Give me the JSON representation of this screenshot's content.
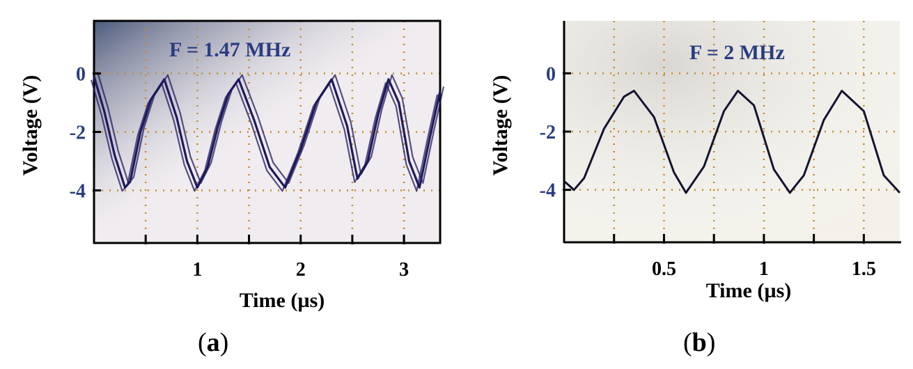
{
  "chart_data": [
    {
      "type": "line",
      "panel": "a",
      "annotation": "F = 1.47 MHz",
      "xlabel": "Time (µs)",
      "ylabel": "Voltage (V)",
      "xlim": [
        0,
        3.35
      ],
      "ylim": [
        -5.8,
        1.8
      ],
      "x_ticks": [
        1,
        2,
        3
      ],
      "x_ticks_unlabeled": [
        0,
        0.5,
        1.5,
        2.5,
        3.0
      ],
      "y_ticks": [
        0,
        -2,
        -4
      ],
      "grid": true,
      "frequency_MHz": 1.47,
      "series": [
        {
          "waveform": "sawtooth-like oscillation, overlaid traces",
          "x": [
            0.0,
            0.1,
            0.2,
            0.3,
            0.35,
            0.45,
            0.55,
            0.68,
            0.8,
            0.9,
            1.0,
            1.1,
            1.2,
            1.3,
            1.4,
            1.55,
            1.7,
            1.85,
            2.0,
            2.15,
            2.3,
            2.45,
            2.55,
            2.65,
            2.75,
            2.85,
            2.95,
            3.05,
            3.15,
            3.25,
            3.35
          ],
          "y": [
            -0.1,
            -1.3,
            -2.8,
            -3.9,
            -3.7,
            -2.0,
            -0.9,
            -0.2,
            -1.5,
            -3.0,
            -3.9,
            -3.2,
            -1.8,
            -0.7,
            -0.2,
            -1.6,
            -3.2,
            -3.9,
            -2.6,
            -1.0,
            -0.2,
            -1.8,
            -3.6,
            -3.0,
            -1.4,
            -0.2,
            -1.0,
            -3.0,
            -3.9,
            -2.2,
            -0.6
          ]
        }
      ]
    },
    {
      "type": "line",
      "panel": "b",
      "annotation": "F = 2 MHz",
      "xlabel": "Time (µs)",
      "ylabel": "Voltage (V)",
      "xlim": [
        0,
        1.68
      ],
      "ylim": [
        -5.8,
        1.8
      ],
      "x_ticks": [
        0.5,
        1,
        1.5
      ],
      "x_ticks_unlabeled": [
        0.25,
        0.75,
        1.25
      ],
      "y_ticks": [
        0,
        -2,
        -4
      ],
      "grid": true,
      "frequency_MHz": 2,
      "series": [
        {
          "waveform": "sinusoidal oscillation",
          "period_us": 0.52,
          "amplitude_V": 1.75,
          "offset_V": -2.35,
          "first_peak_us": 0.35,
          "x": [
            0.0,
            0.05,
            0.1,
            0.2,
            0.3,
            0.35,
            0.45,
            0.55,
            0.61,
            0.7,
            0.8,
            0.87,
            0.95,
            1.05,
            1.13,
            1.2,
            1.3,
            1.39,
            1.5,
            1.6,
            1.68
          ],
          "y": [
            -3.7,
            -4.0,
            -3.6,
            -1.9,
            -0.8,
            -0.6,
            -1.5,
            -3.4,
            -4.1,
            -3.2,
            -1.3,
            -0.6,
            -1.1,
            -3.3,
            -4.1,
            -3.5,
            -1.6,
            -0.6,
            -1.3,
            -3.5,
            -4.1
          ]
        }
      ]
    }
  ],
  "panel_labels": {
    "a": {
      "open": "(",
      "letter": "a",
      "close": ")"
    },
    "b": {
      "open": "(",
      "letter": "b",
      "close": ")"
    }
  },
  "colors": {
    "trace": "#1f1a5e",
    "trace_b": "#15132f",
    "annotation": "#2a3d82",
    "tick_y": "#2a3d82",
    "grid": "#c58a2a",
    "screen_a": "#f1ecef",
    "screen_b": "#f3f1ea"
  }
}
